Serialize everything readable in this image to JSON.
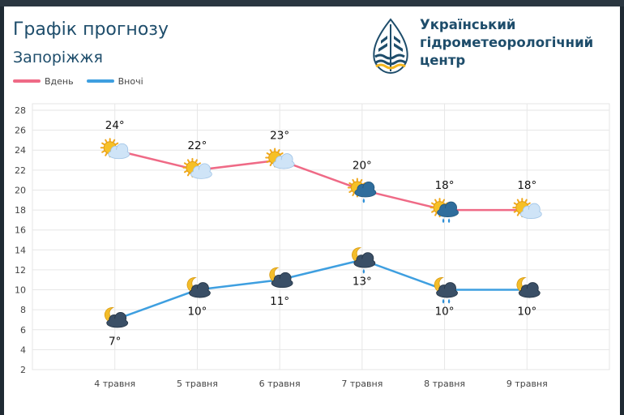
{
  "header": {
    "title": "Графік прогнозу",
    "subtitle": "Запоріжжя",
    "org_line1": "Український",
    "org_line2": "гідрометеорологічний",
    "org_line3": "центр"
  },
  "colors": {
    "day": "#ef6a86",
    "night": "#3e9fe0",
    "accent": "#1e4d6b",
    "logo_gold": "#f3b61f"
  },
  "chart_data": {
    "type": "line",
    "title": "Графік прогнозу",
    "subtitle": "Запоріжжя",
    "legend_position": "top-left",
    "grid": true,
    "categories": [
      "4 травня",
      "5 травня",
      "6 травня",
      "7 травня",
      "8 травня",
      "9 травня"
    ],
    "ylim": [
      2,
      28
    ],
    "yticks": [
      2,
      4,
      6,
      8,
      10,
      12,
      14,
      16,
      18,
      20,
      22,
      24,
      26,
      28
    ],
    "series": [
      {
        "name": "Вдень",
        "values": [
          24,
          22,
          23,
          20,
          18,
          18
        ],
        "labels": [
          "24°",
          "22°",
          "23°",
          "20°",
          "18°",
          "18°"
        ],
        "icons": [
          "sun-cloud-icon",
          "sun-cloud-icon",
          "sun-cloud-icon",
          "sun-rain-cloud-icon",
          "sun-rain-cloud-icon",
          "sun-cloud-icon"
        ]
      },
      {
        "name": "Вночі",
        "values": [
          7,
          10,
          11,
          13,
          10,
          10
        ],
        "labels": [
          "7°",
          "10°",
          "11°",
          "13°",
          "10°",
          "10°"
        ],
        "icons": [
          "moon-cloud-icon",
          "moon-cloud-icon",
          "moon-cloud-icon",
          "moon-rain-cloud-icon",
          "moon-rain-cloud-icon",
          "moon-cloud-icon"
        ]
      }
    ]
  }
}
